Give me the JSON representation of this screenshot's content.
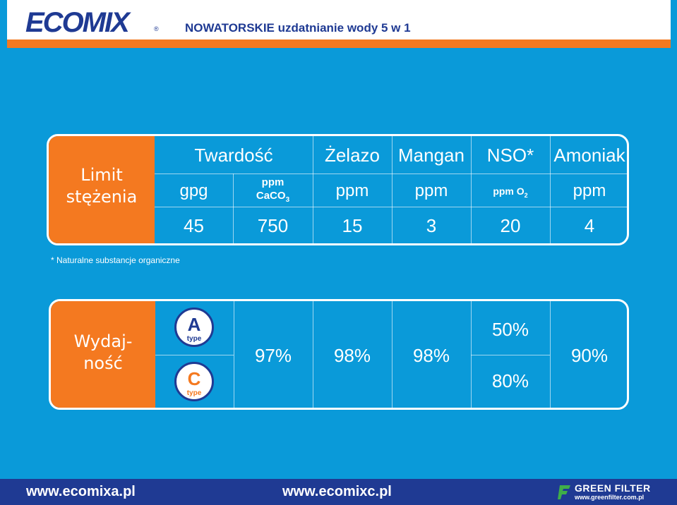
{
  "header": {
    "logo": "ECOMIX",
    "logo_mark": "®",
    "tagline": "NOWATORSKIE uzdatnianie wody 5 w 1"
  },
  "limits": {
    "label_line1": "Limit",
    "label_line2": "stężenia",
    "columns": [
      {
        "name": "Twardość",
        "units": [
          "gpg",
          "ppm CaCO3"
        ],
        "values": [
          "45",
          "750"
        ]
      },
      {
        "name": "Żelazo",
        "unit": "ppm",
        "value": "15"
      },
      {
        "name": "Mangan",
        "unit": "ppm",
        "value": "3"
      },
      {
        "name": "NSO*",
        "unit": "ppm O2",
        "value": "20"
      },
      {
        "name": "Amoniak",
        "unit": "ppm",
        "value": "4"
      }
    ],
    "hardness_unit_ppm": "ppm",
    "hardness_unit_caco": "CaCO",
    "hardness_unit_sub": "3",
    "nso_unit_main": "ppm O",
    "nso_unit_sub": "2"
  },
  "footnote": "* Naturalne substancje organiczne",
  "performance": {
    "label_line1": "Wydaj-",
    "label_line2": "ność",
    "badge_a": {
      "letter": "A",
      "type": "type",
      "color": "#1f3a93"
    },
    "badge_c": {
      "letter": "C",
      "type": "type",
      "color": "#f47920"
    },
    "values": [
      "97%",
      "98%",
      "98%"
    ],
    "nso_values": [
      "50%",
      "80%"
    ],
    "amoniak": "90%"
  },
  "footer": {
    "link1": "www.ecomixa.pl",
    "link2": "www.ecomixc.pl",
    "brand": "GREEN FILTER",
    "brand_url": "www.greenfilter.com.pl"
  },
  "colors": {
    "background": "#0a9ad9",
    "accent": "#f47920",
    "brand_blue": "#1f3a93"
  }
}
